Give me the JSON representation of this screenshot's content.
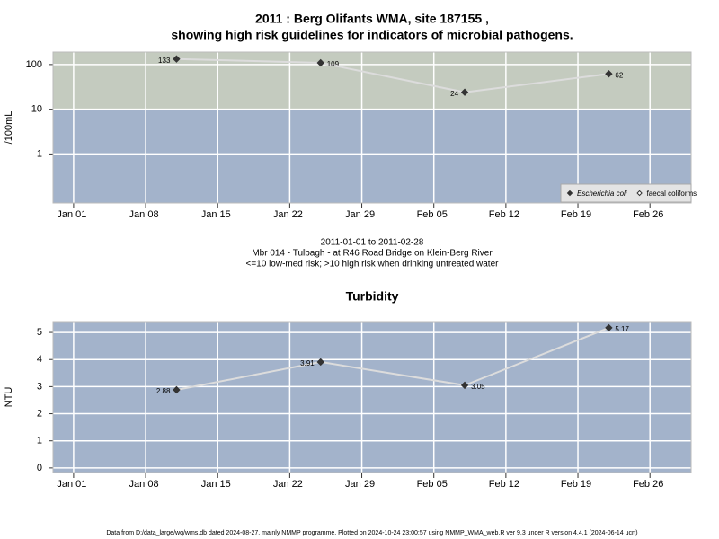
{
  "chart_data": [
    {
      "type": "line",
      "title": [
        "2011 : Berg Olifants WMA, site 187155 ,",
        "showing high risk guidelines for indicators of microbial pathogens."
      ],
      "ylabel": "/100mL",
      "notes": [
        "2011-01-01 to 2011-02-28",
        "Mbr 014 - Tulbagh - at R46 Road Bridge on Klein-Berg River",
        "<=10 low-med risk; >10 high risk when drinking untreated water"
      ],
      "x": [
        "2011-01-11",
        "2011-01-25",
        "2011-02-08",
        "2011-02-22"
      ],
      "series": [
        {
          "name": "Escherichia coli",
          "color": "#333333",
          "filled": true,
          "italic": true,
          "values": [
            133,
            109,
            24,
            62
          ]
        },
        {
          "name": "faecal coliforms",
          "color": "#333333",
          "filled": false,
          "italic": false,
          "values": [
            null,
            null,
            null,
            null
          ]
        }
      ],
      "line_color": "#dcdcdc",
      "log_scale": true,
      "threshold": 10,
      "band_colors": {
        "high": "#c4cbbf",
        "low": "#a3b3cb"
      },
      "xlim": [
        "2010-12-30",
        "2011-03-02"
      ],
      "xticks": [
        {
          "value": "2011-01-01",
          "label": "Jan 01"
        },
        {
          "value": "2011-01-08",
          "label": "Jan 08"
        },
        {
          "value": "2011-01-15",
          "label": "Jan 15"
        },
        {
          "value": "2011-01-22",
          "label": "Jan 22"
        },
        {
          "value": "2011-01-29",
          "label": "Jan 29"
        },
        {
          "value": "2011-02-05",
          "label": "Feb 05"
        },
        {
          "value": "2011-02-12",
          "label": "Feb 12"
        },
        {
          "value": "2011-02-19",
          "label": "Feb 19"
        },
        {
          "value": "2011-02-26",
          "label": "Feb 26"
        }
      ],
      "ylim": [
        0.08,
        190
      ],
      "yticks": [
        1,
        10,
        100
      ],
      "grid": true,
      "legend": "bottom right"
    },
    {
      "type": "line",
      "title": [
        "Turbidity"
      ],
      "ylabel": "NTU",
      "x": [
        "2011-01-11",
        "2011-01-25",
        "2011-02-08",
        "2011-02-22"
      ],
      "values": [
        2.88,
        3.91,
        3.05,
        5.17
      ],
      "color": "#333333",
      "line_color": "#dcdcdc",
      "log_scale": false,
      "background": "#a3b3cb",
      "xlim": [
        "2010-12-30",
        "2011-03-02"
      ],
      "xticks": [
        {
          "value": "2011-01-01",
          "label": "Jan 01"
        },
        {
          "value": "2011-01-08",
          "label": "Jan 08"
        },
        {
          "value": "2011-01-15",
          "label": "Jan 15"
        },
        {
          "value": "2011-01-22",
          "label": "Jan 22"
        },
        {
          "value": "2011-01-29",
          "label": "Jan 29"
        },
        {
          "value": "2011-02-05",
          "label": "Feb 05"
        },
        {
          "value": "2011-02-12",
          "label": "Feb 12"
        },
        {
          "value": "2011-02-19",
          "label": "Feb 19"
        },
        {
          "value": "2011-02-26",
          "label": "Feb 26"
        }
      ],
      "ylim": [
        -0.17,
        5.4
      ],
      "yticks": [
        0,
        1,
        2,
        3,
        4,
        5
      ],
      "grid": true
    }
  ],
  "footer": "Data from D:/data_large/wq/wms.db dated 2024-08-27, mainly NMMP programme. Plotted on 2024-10-24 23:00:57 using NMMP_WMA_web.R ver 9.3 under R version 4.4.1 (2024-06-14 ucrt)"
}
